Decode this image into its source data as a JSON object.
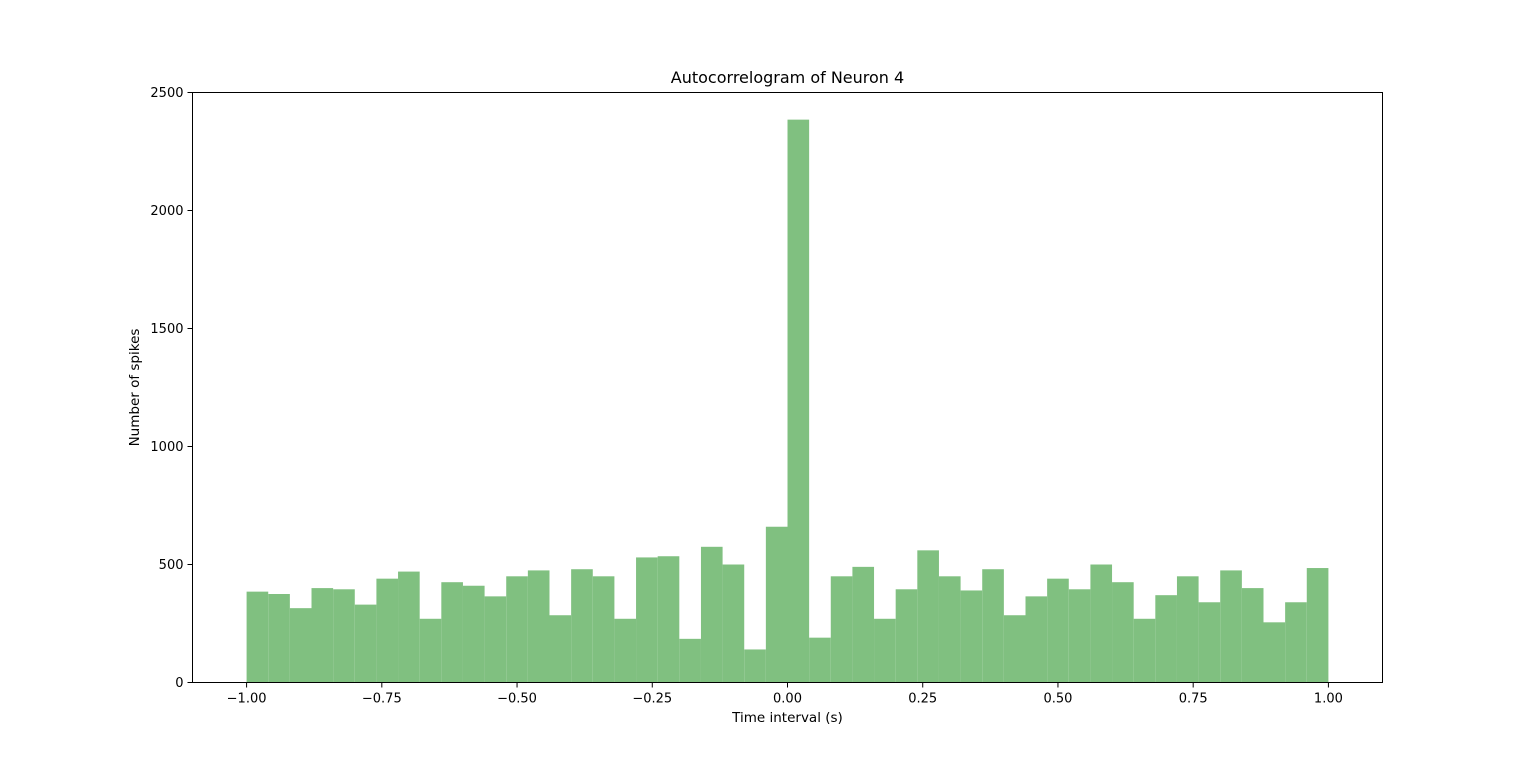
{
  "chart_data": {
    "type": "bar",
    "title": "Autocorrelogram of Neuron 4",
    "xlabel": "Time interval (s)",
    "ylabel": "Number of spikes",
    "xlim": [
      -1.1,
      1.1
    ],
    "ylim": [
      0,
      2500
    ],
    "bin_edges_range": [
      -1.0,
      1.0
    ],
    "bin_width": 0.04,
    "values": [
      385,
      375,
      315,
      400,
      395,
      330,
      440,
      470,
      270,
      425,
      410,
      365,
      450,
      475,
      285,
      480,
      450,
      270,
      530,
      535,
      185,
      575,
      500,
      140,
      660,
      2385,
      190,
      450,
      490,
      270,
      395,
      560,
      450,
      390,
      480,
      285,
      365,
      440,
      395,
      500,
      425,
      270,
      370,
      450,
      340,
      475,
      400,
      255,
      340,
      485
    ],
    "xticks": [
      -1.0,
      -0.75,
      -0.5,
      -0.25,
      0.0,
      0.25,
      0.5,
      0.75,
      1.0
    ],
    "xtick_labels": [
      "−1.00",
      "−0.75",
      "−0.50",
      "−0.25",
      "0.00",
      "0.25",
      "0.50",
      "0.75",
      "1.00"
    ],
    "yticks": [
      0,
      500,
      1000,
      1500,
      2000,
      2500
    ],
    "ytick_labels": [
      "0",
      "500",
      "1000",
      "1500",
      "2000",
      "2500"
    ],
    "bar_color": "#80c080",
    "grid": false,
    "legend": "none"
  }
}
